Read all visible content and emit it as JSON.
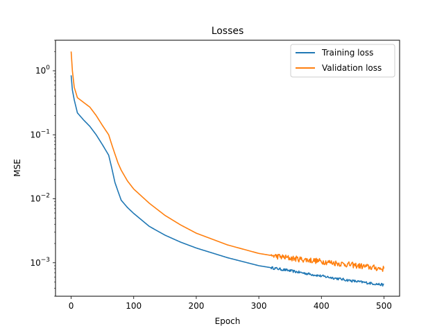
{
  "chart_data": {
    "type": "line",
    "title": "Losses",
    "xlabel": "Epoch",
    "ylabel": "MSE",
    "yscale": "log",
    "xlim": [
      -25,
      525
    ],
    "ylim": [
      0.0003,
      3.0
    ],
    "xticks": [
      0,
      100,
      200,
      300,
      400,
      500
    ],
    "xtick_labels": [
      "0",
      "100",
      "200",
      "300",
      "400",
      "500"
    ],
    "yticks": [
      0.001,
      0.01,
      0.1,
      1
    ],
    "ytick_exponents": [
      "−3",
      "−2",
      "−1",
      "0"
    ],
    "ytick_base": "10",
    "grid": false,
    "legend": {
      "placement": "top-right"
    },
    "series": [
      {
        "name": "Training loss",
        "color": "#1f77b4",
        "x": [
          0,
          2,
          5,
          10,
          20,
          30,
          40,
          50,
          60,
          65,
          70,
          75,
          80,
          90,
          100,
          125,
          150,
          175,
          200,
          250,
          300,
          350,
          400,
          450,
          500
        ],
        "y": [
          0.85,
          0.5,
          0.35,
          0.22,
          0.17,
          0.135,
          0.1,
          0.07,
          0.048,
          0.03,
          0.018,
          0.013,
          0.0095,
          0.0073,
          0.0059,
          0.0037,
          0.0027,
          0.0021,
          0.0017,
          0.0012,
          0.0009,
          0.00075,
          0.00062,
          0.00052,
          0.00045
        ],
        "noise_from_epoch": 320
      },
      {
        "name": "Validation loss",
        "color": "#ff7f0e",
        "x": [
          0,
          2,
          5,
          10,
          20,
          30,
          40,
          50,
          60,
          65,
          70,
          75,
          80,
          90,
          100,
          125,
          150,
          175,
          200,
          250,
          300,
          320,
          350,
          400,
          450,
          500
        ],
        "y": [
          2.0,
          1.0,
          0.55,
          0.38,
          0.32,
          0.27,
          0.2,
          0.14,
          0.1,
          0.07,
          0.05,
          0.036,
          0.028,
          0.019,
          0.0142,
          0.0085,
          0.0055,
          0.0039,
          0.0029,
          0.0019,
          0.0014,
          0.0013,
          0.00118,
          0.00105,
          0.00092,
          0.0008
        ],
        "noise_from_epoch": 320
      }
    ]
  }
}
